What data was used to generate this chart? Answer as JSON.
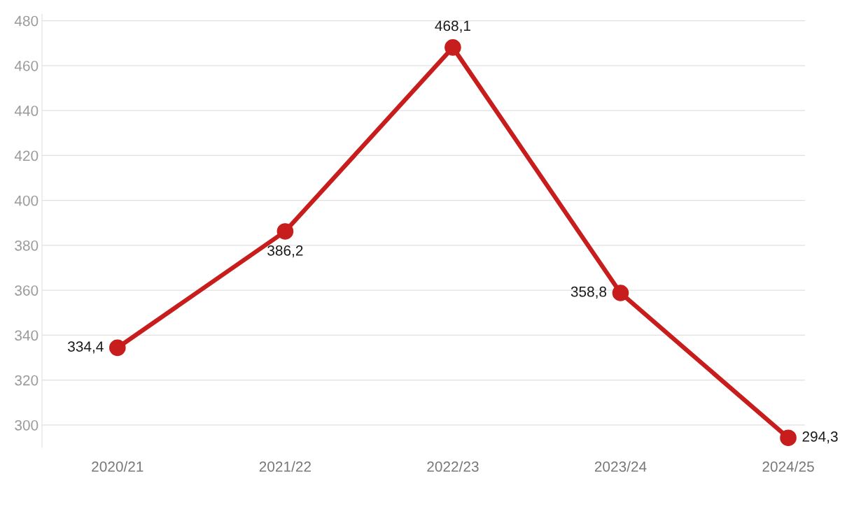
{
  "chart_data": {
    "type": "line",
    "categories": [
      "2020/21",
      "2021/22",
      "2022/23",
      "2023/24",
      "2024/25"
    ],
    "series": [
      {
        "color": "#c71e1d",
        "values": [
          334.4,
          386.2,
          468.1,
          358.8,
          294.3
        ],
        "value_labels": [
          "334,4",
          "386,2",
          "468,1",
          "358,8",
          "294,3"
        ]
      }
    ],
    "ylim": [
      290,
      483
    ],
    "yticks": [
      300,
      320,
      340,
      360,
      380,
      400,
      420,
      440,
      460,
      480
    ],
    "grid": "y",
    "marker": "circle",
    "line_style": "solid",
    "legend": false
  }
}
